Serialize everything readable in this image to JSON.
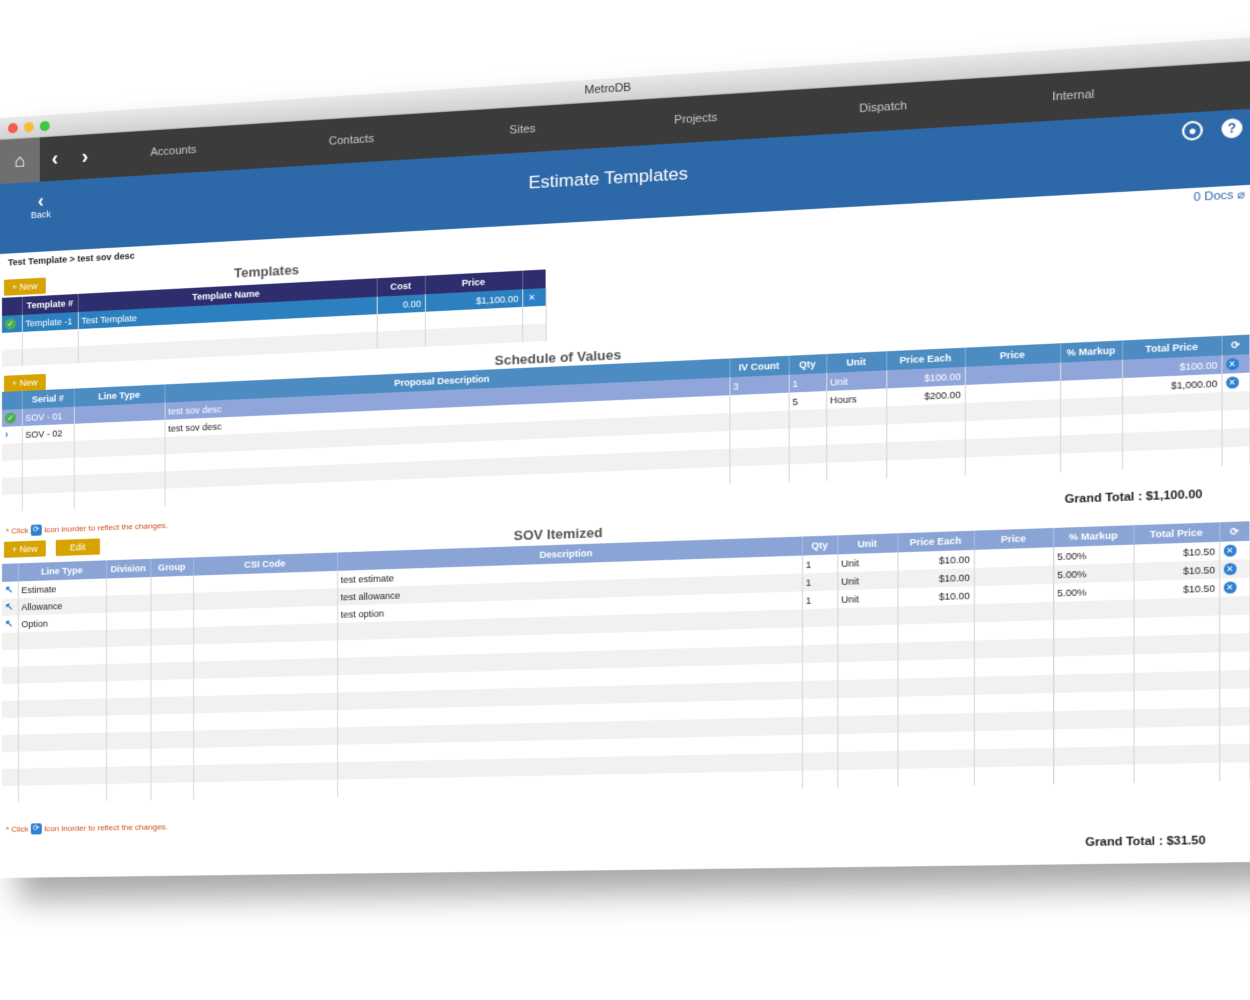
{
  "window": {
    "title": "MetroDB"
  },
  "nav": {
    "links": [
      "Accounts",
      "Contacts",
      "Sites",
      "Projects",
      "Dispatch",
      "Internal"
    ]
  },
  "header": {
    "title": "Estimate Templates",
    "back_label": "Back"
  },
  "breadcrumb": "Test Template > test sov desc",
  "docs_label": "0 Docs",
  "templates": {
    "title": "Templates",
    "new_label": "+ New",
    "columns": [
      "Template #",
      "Template Name",
      "Cost",
      "Price"
    ],
    "rows": [
      {
        "num": "Template -1",
        "name": "Test Template",
        "cost": "0.00",
        "price": "$1,100.00"
      }
    ]
  },
  "sov": {
    "title": "Schedule of Values",
    "new_label": "+ New",
    "columns": [
      "Serial #",
      "Line Type",
      "Proposal Description",
      "IV Count",
      "Qty",
      "Unit",
      "Price Each",
      "Price",
      "% Markup",
      "Total Price"
    ],
    "rows": [
      {
        "serial": "SOV - 01",
        "line_type": "",
        "desc": "test sov desc",
        "iv": "3",
        "qty": "1",
        "unit": "Unit",
        "each": "$100.00",
        "price": "",
        "markup": "",
        "total": "$100.00"
      },
      {
        "serial": "SOV - 02",
        "line_type": "",
        "desc": "test sov desc",
        "iv": "",
        "qty": "5",
        "unit": "Hours",
        "each": "$200.00",
        "price": "",
        "markup": "",
        "total": "$1,000.00"
      }
    ],
    "note_prefix": "* Click",
    "note_suffix": "Icon inorder to reflect the changes.",
    "grand_total_label": "Grand Total :",
    "grand_total": "$1,100.00"
  },
  "itemized": {
    "title": "SOV Itemized",
    "new_label": "+ New",
    "edit_label": "Edit",
    "columns": [
      "Line Type",
      "Division",
      "Group",
      "CSI Code",
      "Description",
      "Qty",
      "Unit",
      "Price Each",
      "Price",
      "% Markup",
      "Total Price"
    ],
    "rows": [
      {
        "line_type": "Estimate",
        "desc": "test estimate",
        "qty": "1",
        "unit": "Unit",
        "each": "$10.00",
        "markup": "5.00%",
        "total": "$10.50"
      },
      {
        "line_type": "Allowance",
        "desc": "test allowance",
        "qty": "1",
        "unit": "Unit",
        "each": "$10.00",
        "markup": "5.00%",
        "total": "$10.50"
      },
      {
        "line_type": "Option",
        "desc": "test option",
        "qty": "1",
        "unit": "Unit",
        "each": "$10.00",
        "markup": "5.00%",
        "total": "$10.50"
      }
    ],
    "note_prefix": "* Click",
    "note_suffix": "Icon inorder to reflect the changes.",
    "grand_total_label": "Grand Total :",
    "grand_total": "$31.50"
  },
  "icons": {
    "home": "home-icon",
    "back": "chevron-left-icon",
    "forward": "chevron-right-icon",
    "user": "user-icon",
    "help": "help-icon",
    "refresh": "refresh-icon",
    "remove": "remove-icon",
    "check": "check-icon",
    "paperclip": "paperclip-icon"
  }
}
